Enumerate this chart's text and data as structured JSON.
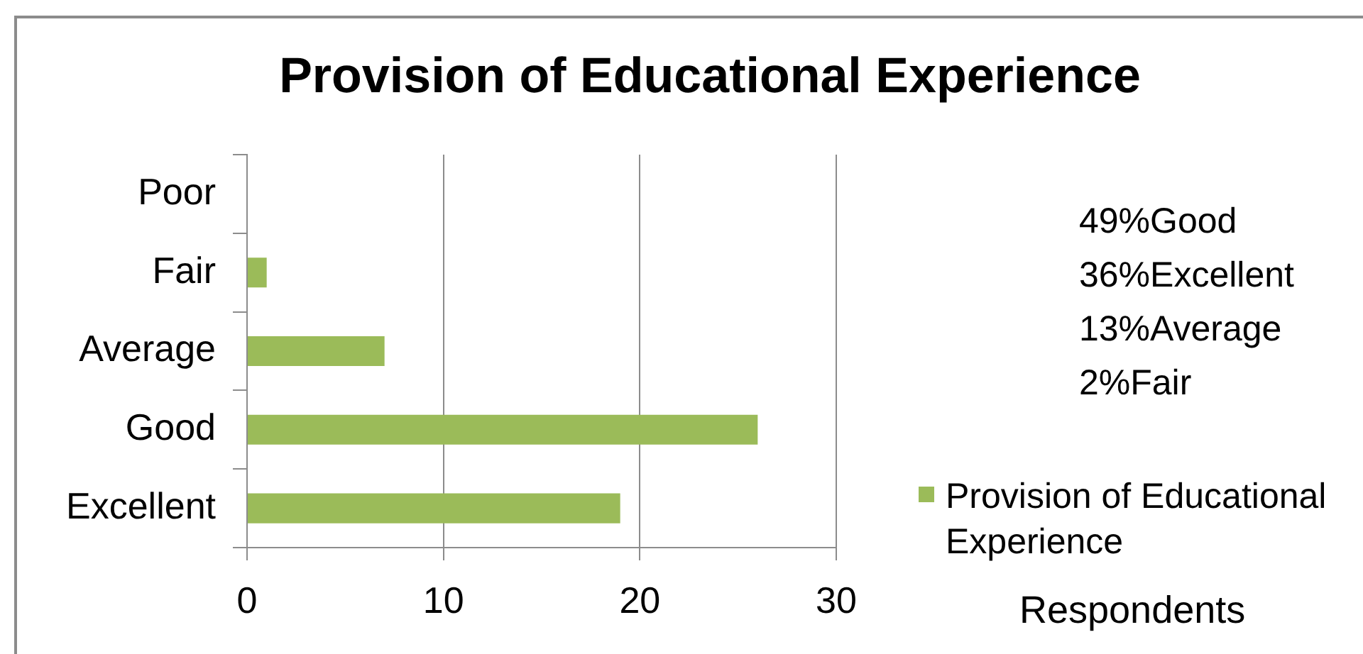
{
  "chart_data": {
    "type": "bar",
    "orientation": "horizontal",
    "title": "Provision of Educational Experience",
    "xlabel": "Respondents",
    "categories": [
      "Poor",
      "Fair",
      "Average",
      "Good",
      "Excellent"
    ],
    "series": [
      {
        "name": "Provision of Educational Experience",
        "color": "#9bbb59",
        "values": [
          0,
          1,
          7,
          26,
          19
        ]
      }
    ],
    "xlim": [
      0,
      30
    ],
    "xticks": [
      0,
      10,
      20,
      30
    ],
    "grid": "x",
    "legend": "right",
    "annotations": [
      "49%Good",
      "36%Excellent",
      "13%Average",
      "2%Fair"
    ]
  }
}
